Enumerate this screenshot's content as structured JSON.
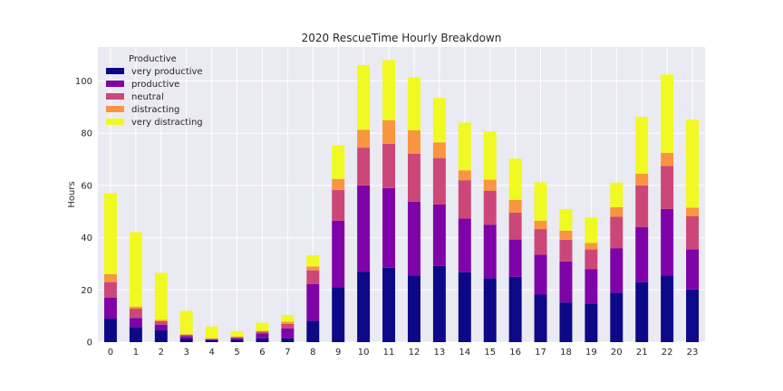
{
  "chart_data": {
    "type": "bar",
    "stacked": true,
    "title": "2020 RescueTime Hourly Breakdown",
    "xlabel": "",
    "ylabel": "Hours",
    "ylim": [
      0,
      113
    ],
    "yticks": [
      0,
      20,
      40,
      60,
      80,
      100
    ],
    "categories": [
      "0",
      "1",
      "2",
      "3",
      "4",
      "5",
      "6",
      "7",
      "8",
      "9",
      "10",
      "11",
      "12",
      "13",
      "14",
      "15",
      "16",
      "17",
      "18",
      "19",
      "20",
      "21",
      "22",
      "23"
    ],
    "legend_title": "Productive",
    "legend_position": "top-left",
    "grid": true,
    "series": [
      {
        "name": "very productive",
        "color": "#0d0887",
        "values": [
          9,
          5.8,
          4.5,
          1.5,
          0.8,
          1,
          1.5,
          1.5,
          8.2,
          21,
          27,
          28.5,
          25.5,
          29.2,
          26.8,
          24.5,
          25,
          18.2,
          15.2,
          14.8,
          19,
          23,
          25.5,
          20.2
        ]
      },
      {
        "name": "productive",
        "color": "#7e03a8",
        "values": [
          8,
          3.5,
          2.2,
          0.8,
          0.3,
          0.5,
          1.8,
          3.8,
          14,
          25.5,
          33,
          30.5,
          28.3,
          23.5,
          20.5,
          20.5,
          14.3,
          15.3,
          15.7,
          13.2,
          17,
          21,
          25.5,
          15.3
        ]
      },
      {
        "name": "neutral",
        "color": "#cc4778",
        "values": [
          6,
          3.5,
          1.3,
          0.5,
          0.2,
          0.4,
          0.7,
          1.7,
          5.3,
          11.8,
          14.5,
          17,
          18.3,
          17.8,
          14.7,
          13,
          10.3,
          9.8,
          8.3,
          7.5,
          12,
          16,
          16.5,
          12.8
        ]
      },
      {
        "name": "distracting",
        "color": "#f89540",
        "values": [
          3,
          0.8,
          0.5,
          0.2,
          0.2,
          0.2,
          0.3,
          0.8,
          1.5,
          4.2,
          6.8,
          9,
          9,
          6,
          3.8,
          4.2,
          4.9,
          3.2,
          3.5,
          2.5,
          3.7,
          4.5,
          5,
          3.2
        ]
      },
      {
        "name": "very distracting",
        "color": "#f0f921",
        "values": [
          31,
          28.5,
          18,
          9,
          4.5,
          2.1,
          3.1,
          2.6,
          4.3,
          12.8,
          24.8,
          23,
          20.3,
          17,
          18.3,
          18.5,
          15.8,
          14.7,
          8.3,
          9.7,
          9.4,
          21.8,
          30,
          33.7
        ]
      }
    ]
  }
}
